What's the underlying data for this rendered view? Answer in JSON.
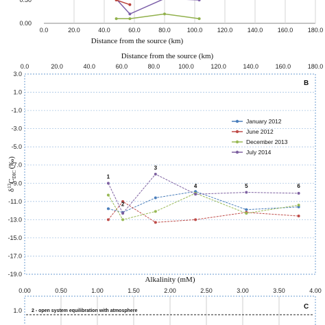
{
  "chart_data": [
    {
      "type": "line",
      "panel": "top (cropped)",
      "xlabel": "Distance from the source (km)",
      "x_ticks": [
        "0.0",
        "20.0",
        "40.0",
        "60.0",
        "80.0",
        "100.0",
        "120.0",
        "140.0",
        "160.0",
        "180.0"
      ],
      "xlim": [
        0,
        180
      ],
      "y_ticks": [
        "0.50",
        "0.00"
      ],
      "ylim": [
        0,
        0.5
      ],
      "series": [
        {
          "color": "#7b5ea8",
          "x": [
            48,
            57,
            80,
            103
          ],
          "y": [
            0.52,
            0.2,
            0.53,
            0.5
          ]
        },
        {
          "color": "#b9423c",
          "x": [
            48,
            57
          ],
          "y": [
            0.5,
            0.4
          ]
        },
        {
          "color": "#90b04a",
          "x": [
            48,
            57,
            80,
            103
          ],
          "y": [
            0.1,
            0.1,
            0.2,
            0.1
          ]
        }
      ]
    },
    {
      "type": "line",
      "panel_letter": "B",
      "x_top_label": "Distance from the source (km)",
      "x_top_ticks": [
        "0.0",
        "20.0",
        "40.0",
        "60.0",
        "80.0",
        "100.0",
        "120.0",
        "140.0",
        "160.0",
        "180.0"
      ],
      "x_top_lim": [
        0,
        180
      ],
      "xlabel": "Alkalinity (mM)",
      "x_ticks": [
        "0.00",
        "0.50",
        "1.00",
        "1.50",
        "2.00",
        "2.50",
        "3.00",
        "3.50",
        "4.00"
      ],
      "xlim": [
        0,
        4
      ],
      "ylabel_main": "δ",
      "ylabel_sup": "13",
      "ylabel_mid": "C",
      "ylabel_sub": "DIC",
      "ylabel_unit": "(‰)",
      "y_ticks": [
        "3.0",
        "1.0",
        "-1.0",
        "-3.0",
        "-5.0",
        "-7.0",
        "-9.0",
        "-11.0",
        "-13.0",
        "-15.0",
        "-17.0",
        "-19.0"
      ],
      "ylim": [
        -19,
        3
      ],
      "legend_position": "right",
      "series": [
        {
          "name": "January 2012",
          "color": "#4a7ebb",
          "x": [
            1.15,
            1.35,
            1.8,
            2.35,
            3.05,
            3.77
          ],
          "y": [
            -11.8,
            -12.2,
            -10.6,
            -9.9,
            -11.9,
            -11.6
          ]
        },
        {
          "name": "June 2012",
          "color": "#be4b48",
          "x": [
            1.15,
            1.35,
            1.8,
            2.35,
            3.05,
            3.77
          ],
          "y": [
            -13.0,
            -11.0,
            -13.3,
            -13.0,
            -12.2,
            -12.6
          ]
        },
        {
          "name": "December 2013",
          "color": "#98b954",
          "x": [
            1.15,
            1.35,
            1.8,
            2.35,
            3.05,
            3.77
          ],
          "y": [
            -10.3,
            -13.0,
            -12.1,
            -10.1,
            -12.3,
            -11.4
          ]
        },
        {
          "name": "July 2014",
          "color": "#7d60a0",
          "x": [
            1.15,
            1.35,
            1.8,
            2.35,
            3.05,
            3.77
          ],
          "y": [
            -9.0,
            -12.3,
            -8.0,
            -10.2,
            -10.0,
            -10.1
          ]
        }
      ],
      "annotations": [
        {
          "text": "1",
          "x": 1.15,
          "y": -8.5
        },
        {
          "text": "2",
          "x": 1.35,
          "y": -11.5
        },
        {
          "text": "3",
          "x": 1.8,
          "y": -7.5
        },
        {
          "text": "4",
          "x": 2.35,
          "y": -9.5
        },
        {
          "text": "5",
          "x": 3.05,
          "y": -9.5
        },
        {
          "text": "6",
          "x": 3.77,
          "y": -9.5
        }
      ]
    },
    {
      "type": "line",
      "panel": "bottom (cropped)",
      "panel_letter": "C",
      "y_ticks": [
        "1.0"
      ],
      "annotation": "2 - open system equilibration with atmosphere"
    }
  ]
}
